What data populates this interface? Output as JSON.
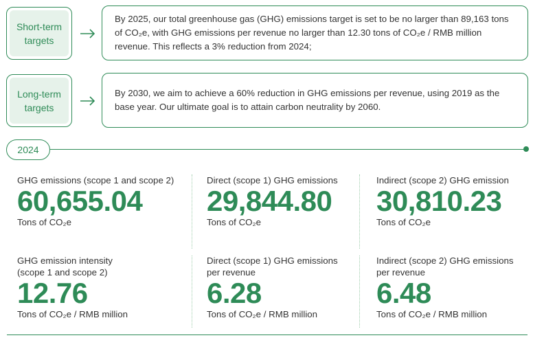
{
  "targets": [
    {
      "label_line1": "Short-term",
      "label_line2": "targets",
      "text": "By 2025, our total greenhouse gas (GHG) emissions target is set to be no larger than 89,163 tons of CO₂e, with GHG emissions per revenue no larger than 12.30 tons of CO₂e / RMB million revenue. This reflects a 3% reduction from 2024;"
    },
    {
      "label_line1": "Long-term",
      "label_line2": "targets",
      "text": "By 2030, we aim to achieve a 60% reduction in GHG emissions per revenue, using 2019 as the base year. Our ultimate goal is to attain carbon neutrality by 2060."
    }
  ],
  "year": "2024",
  "stats": [
    {
      "label": "GHG emissions (scope 1 and scope 2)",
      "value": "60,655.04",
      "unit": "Tons of CO₂e"
    },
    {
      "label": "Direct (scope 1) GHG emissions",
      "value": "29,844.80",
      "unit": "Tons of CO₂e"
    },
    {
      "label": "Indirect (scope 2) GHG emission",
      "value": "30,810.23",
      "unit": "Tons of CO₂e"
    },
    {
      "label": "GHG emission intensity\n(scope 1 and scope 2)",
      "value": "12.76",
      "unit": "Tons of CO₂e / RMB million"
    },
    {
      "label": "Direct (scope 1) GHG emissions\nper revenue",
      "value": "6.28",
      "unit": "Tons of CO₂e / RMB million"
    },
    {
      "label": "Indirect (scope 2) GHG emissions\nper revenue",
      "value": "6.48",
      "unit": "Tons of CO₂e / RMB million"
    }
  ],
  "colors": {
    "accent": "#2e8b57",
    "label_bg": "#e6f2ea",
    "text": "#333333"
  }
}
